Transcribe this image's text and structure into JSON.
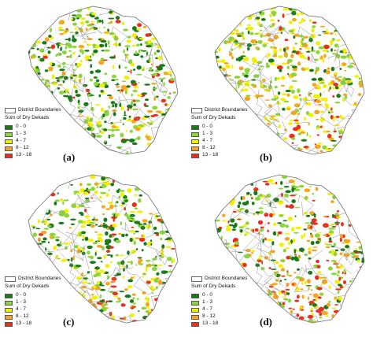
{
  "figure": {
    "legend_boundary_label": "District Boundaries",
    "legend_title": "Sum of Dry Dekads",
    "classes": [
      {
        "label": "0 - 0",
        "color": "#1a7a1a"
      },
      {
        "label": "1 - 3",
        "color": "#8cd63a"
      },
      {
        "label": "4 - 7",
        "color": "#f2f000"
      },
      {
        "label": "8 - 12",
        "color": "#f7a51e"
      },
      {
        "label": "13 - 18",
        "color": "#e8301c"
      }
    ]
  },
  "panels": [
    {
      "id": "a",
      "label": "(a)",
      "weights": [
        0.34,
        0.3,
        0.18,
        0.11,
        0.07
      ],
      "hotspot": "south-east"
    },
    {
      "id": "b",
      "label": "(b)",
      "weights": [
        0.14,
        0.22,
        0.4,
        0.19,
        0.05
      ],
      "hotspot": "south"
    },
    {
      "id": "c",
      "label": "(c)",
      "weights": [
        0.36,
        0.22,
        0.24,
        0.12,
        0.06
      ],
      "hotspot": "south"
    },
    {
      "id": "d",
      "label": "(d)",
      "weights": [
        0.22,
        0.2,
        0.2,
        0.2,
        0.18
      ],
      "hotspot": "south"
    }
  ]
}
